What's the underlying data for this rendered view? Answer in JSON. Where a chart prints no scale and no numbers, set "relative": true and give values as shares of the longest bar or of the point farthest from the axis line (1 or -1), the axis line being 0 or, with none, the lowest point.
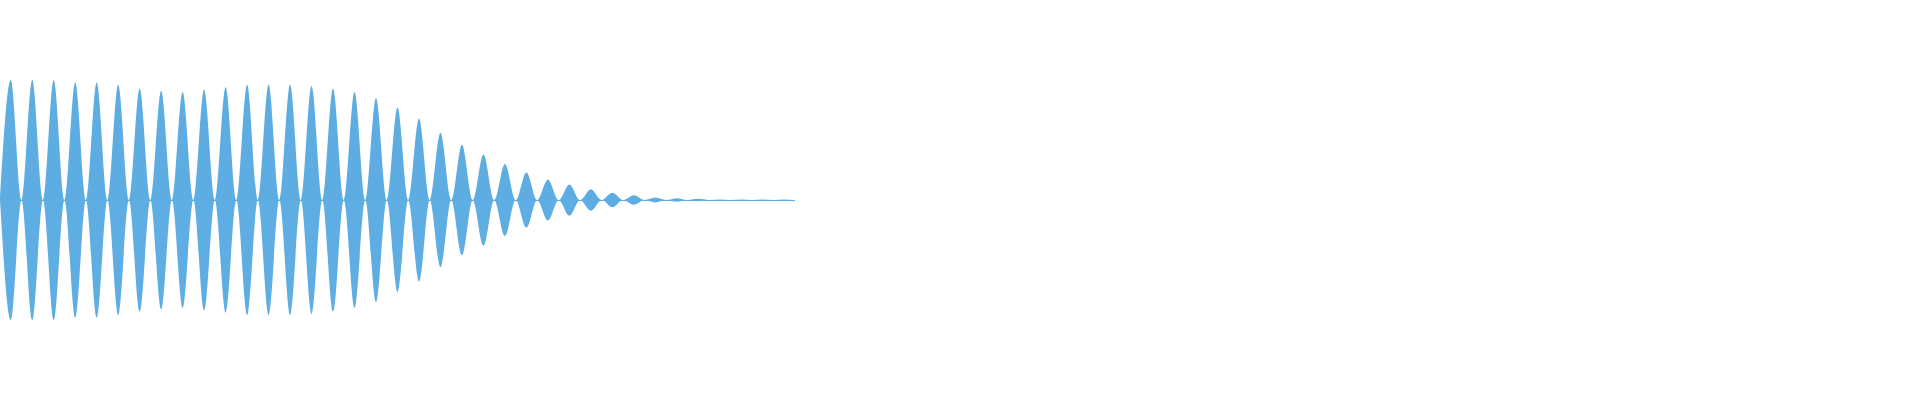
{
  "chart_data": {
    "type": "area",
    "relative": true,
    "categories": [
      null,
      null,
      null,
      null,
      null,
      null,
      null,
      null,
      null,
      null,
      null,
      null,
      null,
      null,
      null,
      null,
      null,
      null,
      null,
      null,
      null,
      null,
      null,
      null,
      null,
      null,
      null,
      null,
      null,
      null,
      null,
      null,
      null,
      null,
      null,
      null,
      null,
      null,
      null,
      null,
      null,
      null,
      null,
      null,
      null,
      null,
      null,
      null,
      null,
      null,
      null,
      null,
      null,
      null,
      null,
      null,
      null,
      null,
      null,
      null,
      null,
      null,
      null,
      null,
      null,
      null,
      null,
      null,
      null,
      null,
      null,
      null,
      null,
      null,
      null
    ],
    "series": [
      {
        "color": "#5dade2",
        "values": [
          0,
          1.0,
          0,
          1.0,
          0,
          1.0,
          0,
          0.98,
          0,
          0.98,
          0,
          0.96,
          0,
          0.93,
          0,
          0.91,
          0,
          0.9,
          0,
          0.92,
          0,
          0.94,
          0,
          0.96,
          0,
          0.96,
          0,
          0.96,
          0,
          0.95,
          0,
          0.93,
          0,
          0.9,
          0,
          0.85,
          0,
          0.77,
          0,
          0.68,
          0,
          0.56,
          0,
          0.46,
          0,
          0.38,
          0,
          0.3,
          0,
          0.23,
          0,
          0.17,
          0,
          0.13,
          0,
          0.09,
          0,
          0.06,
          0,
          0.04,
          0,
          0.02,
          0,
          0.015,
          0,
          0.01,
          0,
          0.005,
          0,
          0.005,
          0,
          0.005,
          0,
          0.005,
          0
        ]
      },
      {
        "color": "#5eaee3",
        "values": [
          0,
          -1.0,
          0,
          -1.0,
          0,
          -1.0,
          0,
          -0.98,
          0,
          -0.98,
          0,
          -0.96,
          0,
          -0.93,
          0,
          -0.91,
          0,
          -0.9,
          0,
          -0.92,
          0,
          -0.94,
          0,
          -0.96,
          0,
          -0.96,
          0,
          -0.96,
          0,
          -0.95,
          0,
          -0.93,
          0,
          -0.9,
          0,
          -0.85,
          0,
          -0.77,
          0,
          -0.68,
          0,
          -0.56,
          0,
          -0.46,
          0,
          -0.38,
          0,
          -0.3,
          0,
          -0.23,
          0,
          -0.17,
          0,
          -0.13,
          0,
          -0.09,
          0,
          -0.06,
          0,
          -0.04,
          0,
          -0.02,
          0,
          -0.015,
          0,
          -0.01,
          0,
          -0.005,
          0,
          -0.005,
          0,
          -0.005,
          0,
          -0.005,
          0
        ]
      }
    ]
  }
}
